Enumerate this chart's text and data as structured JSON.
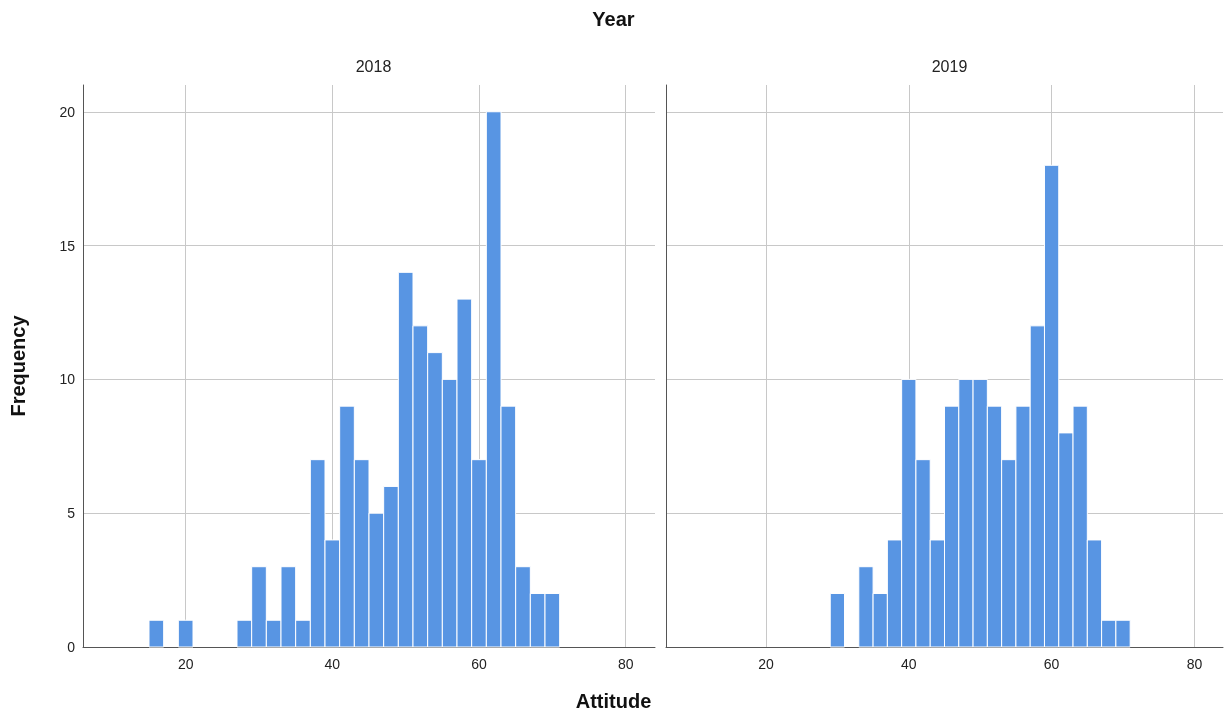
{
  "chart_data": [
    {
      "type": "histogram",
      "title": "2018",
      "xlabel": "Attitude",
      "ylabel": "Frequency",
      "annotations": [
        "Year"
      ],
      "color": "#5895e3",
      "bins": [
        15,
        17,
        19,
        21,
        23,
        25,
        27,
        29,
        31,
        33,
        35,
        37,
        39,
        41,
        43,
        45,
        47,
        49,
        51,
        53,
        55,
        57,
        59,
        61,
        63,
        65,
        67,
        69,
        71
      ],
      "values": [
        1,
        0,
        1,
        0,
        0,
        0,
        1,
        3,
        1,
        3,
        1,
        7,
        4,
        9,
        7,
        5,
        6,
        14,
        12,
        11,
        10,
        13,
        7,
        20,
        9,
        3,
        2,
        2
      ],
      "xlim": [
        6,
        84
      ],
      "xticks": [
        20,
        40,
        60,
        80
      ],
      "ylim": [
        0,
        21
      ],
      "yticks": [
        0,
        5,
        10,
        15,
        20
      ],
      "grid": true
    },
    {
      "type": "histogram",
      "title": "2019",
      "color": "#5895e3",
      "bins": [
        29,
        31,
        33,
        35,
        37,
        39,
        41,
        43,
        45,
        47,
        49,
        51,
        53,
        55,
        57,
        59,
        61,
        63,
        65,
        67,
        69,
        71
      ],
      "values": [
        2,
        0,
        3,
        2,
        4,
        10,
        7,
        4,
        9,
        10,
        10,
        9,
        7,
        9,
        12,
        18,
        8,
        9,
        4,
        1,
        1
      ],
      "xlim": [
        6,
        84
      ],
      "xticks": [
        20,
        40,
        60,
        80
      ],
      "ylim": [
        0,
        21
      ],
      "yticks": [
        0,
        5,
        10,
        15,
        20
      ],
      "grid": true,
      "tick_labels": "x"
    }
  ]
}
